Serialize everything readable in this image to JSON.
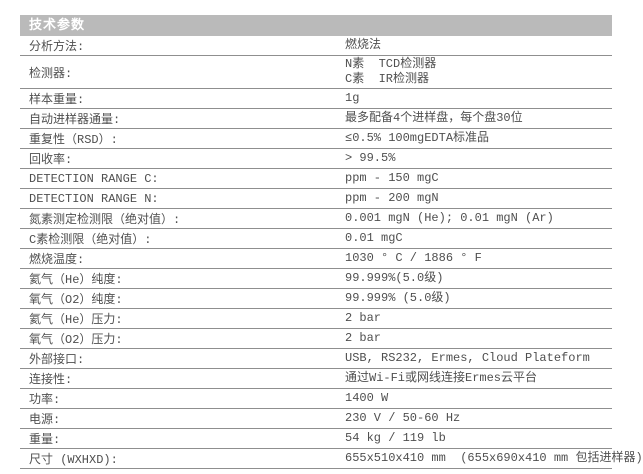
{
  "header": {
    "title": "技术参数"
  },
  "table": {
    "rows": [
      {
        "label": "分析方法:",
        "values": [
          "燃烧法"
        ]
      },
      {
        "label": "检测器:",
        "values": [
          "N素  TCD检测器",
          "C素  IR检测器"
        ]
      },
      {
        "label": "样本重量:",
        "values": [
          "1g"
        ]
      },
      {
        "label": "自动进样器通量:",
        "values": [
          "最多配备4个进样盘，每个盘30位"
        ]
      },
      {
        "label": "重复性（RSD）:",
        "values": [
          "≤0.5% 100mgEDTA标准品"
        ]
      },
      {
        "label": "回收率:",
        "values": [
          "> 99.5%"
        ]
      },
      {
        "label": "DETECTION RANGE C:",
        "values": [
          "ppm - 150 mgC"
        ]
      },
      {
        "label": "DETECTION RANGE N:",
        "values": [
          "ppm - 200 mgN"
        ]
      },
      {
        "label": "氮素测定检测限（绝对值）:",
        "values": [
          "0.001 mgN (He); 0.01 mgN (Ar)"
        ]
      },
      {
        "label": "C素检测限（绝对值）:",
        "values": [
          "0.01 mgC"
        ]
      },
      {
        "label": "燃烧温度:",
        "values": [
          "1030 ° C / 1886 ° F"
        ]
      },
      {
        "label": "氦气（He）纯度:",
        "values": [
          "99.999%(5.0级)"
        ]
      },
      {
        "label": "氧气（O2）纯度:",
        "values": [
          "99.999% (5.0级)"
        ]
      },
      {
        "label": "氦气（He）压力:",
        "values": [
          "2 bar"
        ]
      },
      {
        "label": "氧气（O2）压力:",
        "values": [
          "2 bar"
        ]
      },
      {
        "label": "外部接口:",
        "values": [
          "USB, RS232, Ermes, Cloud Plateform"
        ]
      },
      {
        "label": "连接性:",
        "values": [
          "通过Wi-Fi或网线连接Ermes云平台"
        ]
      },
      {
        "label": "功率:",
        "values": [
          "1400 W"
        ]
      },
      {
        "label": "电源:",
        "values": [
          "230 V / 50-60 Hz"
        ]
      },
      {
        "label": "重量:",
        "values": [
          "54 kg / 119 lb"
        ]
      },
      {
        "label": "尺寸 (WXHXD):",
        "values": [
          "655x510x410 mm  (655x690x410 mm 包括进样器)"
        ]
      }
    ]
  },
  "colors": {
    "header_background": "#bababa",
    "header_text": "#ffffff",
    "row_border": "#8f8f8f",
    "body_text": "#4f4f4f",
    "page_background": "#ffffff"
  }
}
